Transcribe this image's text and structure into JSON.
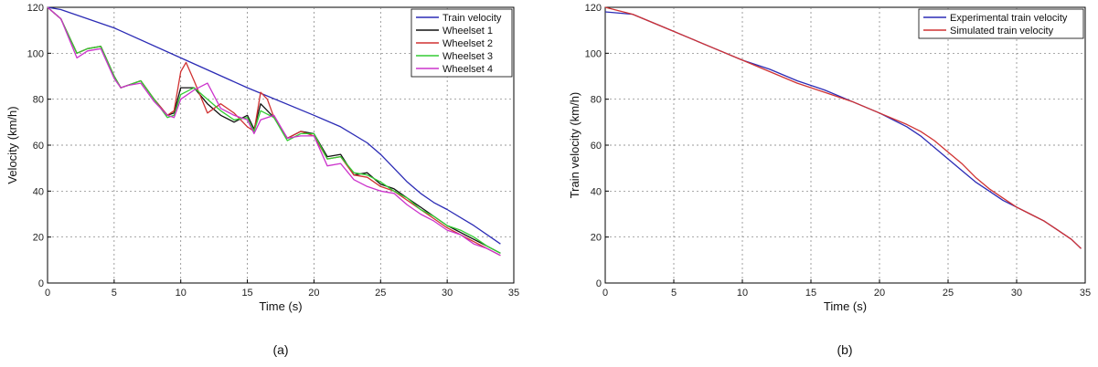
{
  "chart_data": [
    {
      "type": "line",
      "panel_label": "(a)",
      "xlabel": "Time (s)",
      "ylabel": "Velocity (km/h)",
      "xlim": [
        0,
        35
      ],
      "ylim": [
        0,
        120
      ],
      "xticks": [
        0,
        5,
        10,
        15,
        20,
        25,
        30,
        35
      ],
      "yticks": [
        0,
        20,
        40,
        60,
        80,
        100,
        120
      ],
      "grid": true,
      "legend_position": "top-right",
      "series": [
        {
          "name": "Train velocity",
          "color": "#2b2bb5",
          "x": [
            0,
            1,
            5,
            10,
            15,
            20,
            22,
            24,
            25,
            26,
            27,
            28,
            29,
            30,
            32,
            34
          ],
          "y": [
            120,
            119,
            111,
            98,
            85,
            73,
            68,
            61,
            56,
            50,
            44,
            39,
            35,
            32,
            25,
            17
          ]
        },
        {
          "name": "Wheelset 1",
          "color": "#111111",
          "x": [
            0,
            1,
            2.2,
            3,
            4,
            5,
            5.5,
            6,
            7,
            8,
            9,
            9.5,
            10,
            11,
            12,
            13,
            14,
            15,
            15.5,
            16,
            17,
            18,
            19,
            20,
            21,
            22,
            23,
            24,
            25,
            26,
            27,
            28,
            29,
            30,
            31,
            32,
            33,
            34
          ],
          "y": [
            120,
            115,
            100,
            102,
            103,
            90,
            85,
            86,
            88,
            80,
            73,
            74,
            85,
            85,
            78,
            73,
            70,
            73,
            67,
            78,
            72,
            63,
            66,
            65,
            55,
            56,
            47,
            48,
            43,
            41,
            37,
            33,
            29,
            25,
            22,
            19,
            16,
            13
          ]
        },
        {
          "name": "Wheelset 2",
          "color": "#d03232",
          "x": [
            0,
            1,
            2.2,
            3,
            4,
            5,
            5.5,
            6,
            7,
            8,
            9,
            9.5,
            10,
            10.4,
            11,
            12,
            13,
            14,
            15,
            15.5,
            16,
            16.5,
            17,
            18,
            19,
            20,
            21,
            22,
            23,
            24,
            25,
            26,
            27,
            28,
            29,
            30,
            31,
            32,
            33,
            34
          ],
          "y": [
            120,
            115,
            100,
            102,
            103,
            90,
            85,
            86,
            88,
            80,
            73,
            75,
            92,
            96,
            88,
            74,
            78,
            74,
            68,
            66,
            83,
            80,
            72,
            63,
            66,
            64,
            54,
            55,
            47,
            46,
            42,
            40,
            36,
            32,
            28,
            24,
            21,
            18,
            15,
            12
          ]
        },
        {
          "name": "Wheelset 3",
          "color": "#33cc33",
          "x": [
            0,
            1,
            2.2,
            3,
            4,
            5,
            5.5,
            6,
            7,
            8,
            9,
            9.5,
            10,
            11,
            12,
            13,
            14,
            15,
            15.5,
            16,
            17,
            18,
            19,
            20,
            21,
            22,
            23,
            24,
            25,
            26,
            27,
            28,
            29,
            30,
            31,
            32,
            33,
            34
          ],
          "y": [
            120,
            115,
            100,
            102,
            103,
            90,
            85,
            86,
            88,
            80,
            72,
            73,
            82,
            85,
            80,
            75,
            71,
            72,
            66,
            75,
            72,
            62,
            65,
            65,
            54,
            55,
            48,
            47,
            44,
            40,
            37,
            32,
            29,
            25,
            23,
            20,
            16,
            13
          ]
        },
        {
          "name": "Wheelset 4",
          "color": "#cc33cc",
          "x": [
            0,
            1,
            2.2,
            3,
            4,
            5,
            5.5,
            6,
            7,
            8,
            9,
            9.5,
            10,
            11,
            12,
            13,
            14,
            15,
            15.5,
            16,
            17,
            18,
            19,
            20,
            21,
            22,
            23,
            24,
            25,
            26,
            27,
            28,
            29,
            30,
            31,
            32,
            33,
            34
          ],
          "y": [
            120,
            115,
            98,
            101,
            102,
            89,
            85,
            86,
            87,
            79,
            73,
            72,
            80,
            84,
            87,
            76,
            73,
            71,
            65,
            71,
            73,
            63,
            64,
            64,
            51,
            52,
            45,
            42,
            40,
            39,
            34,
            30,
            27,
            23,
            21,
            17,
            15,
            12
          ]
        }
      ]
    },
    {
      "type": "line",
      "panel_label": "(b)",
      "xlabel": "Time (s)",
      "ylabel": "Train velocity (km/h)",
      "xlim": [
        0,
        35
      ],
      "ylim": [
        0,
        120
      ],
      "xticks": [
        0,
        5,
        10,
        15,
        20,
        25,
        30,
        35
      ],
      "yticks": [
        0,
        20,
        40,
        60,
        80,
        100,
        120
      ],
      "grid": true,
      "legend_position": "top-right",
      "series": [
        {
          "name": "Experimental train velocity",
          "color": "#2b2bb5",
          "x": [
            0,
            2,
            4,
            6,
            8,
            10,
            12,
            14,
            16,
            18,
            20,
            22,
            23,
            24,
            25,
            26,
            27,
            28,
            29,
            30,
            31,
            32,
            33,
            34,
            34.7
          ],
          "y": [
            118,
            117,
            112,
            107,
            102,
            97,
            93,
            88,
            84,
            79,
            74,
            68,
            64,
            59,
            54,
            49,
            44,
            40,
            36,
            33,
            30,
            27,
            23,
            19,
            15
          ]
        },
        {
          "name": "Simulated train velocity",
          "color": "#d03232",
          "x": [
            0,
            2,
            4,
            6,
            8,
            10,
            12,
            14,
            16,
            18,
            20,
            22,
            23,
            24,
            25,
            26,
            27,
            28,
            29,
            30,
            31,
            32,
            33,
            34,
            34.7
          ],
          "y": [
            120,
            117,
            112,
            107,
            102,
            97,
            92,
            87,
            83,
            79,
            74,
            69,
            66,
            62,
            57,
            52,
            46,
            41,
            37,
            33,
            30,
            27,
            23,
            19,
            15
          ]
        }
      ]
    }
  ]
}
